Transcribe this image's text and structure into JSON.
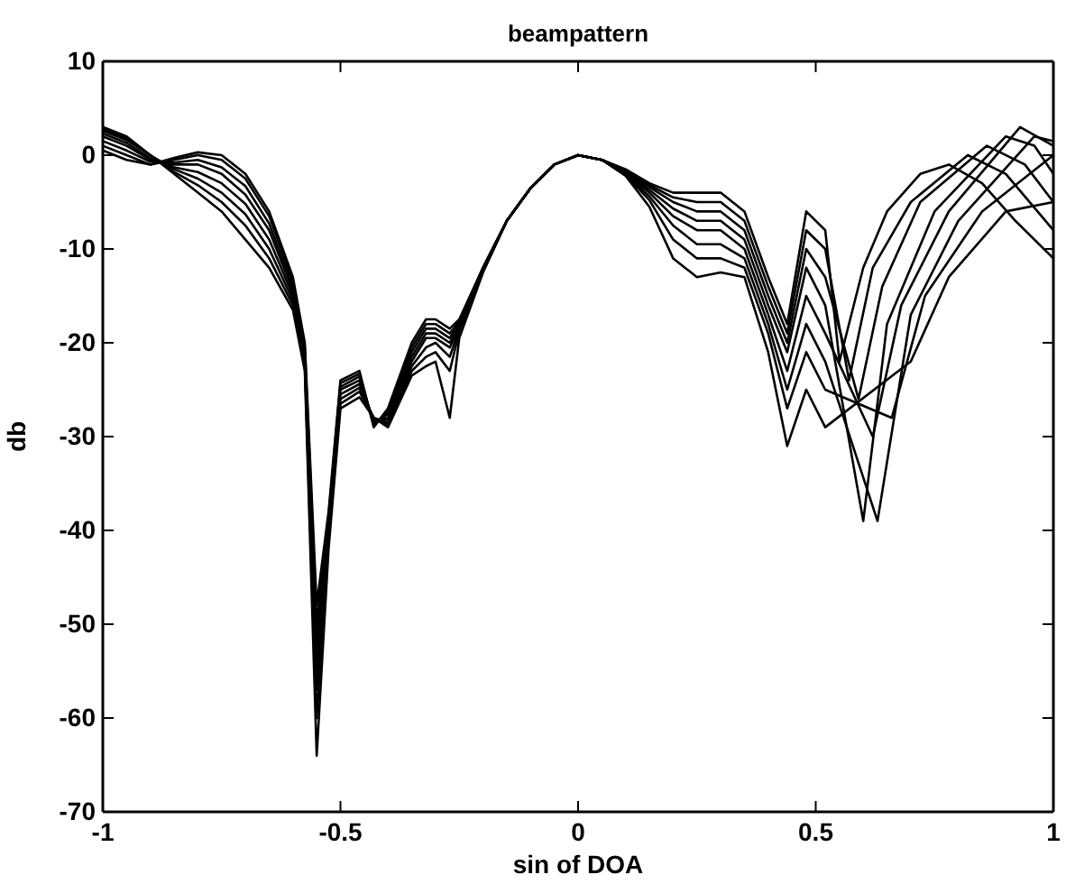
{
  "chart_data": {
    "type": "line",
    "title": "beampattern",
    "xlabel": "sin of DOA",
    "ylabel": "db",
    "xlim": [
      -1,
      1
    ],
    "ylim": [
      -70,
      10
    ],
    "xticks": [
      -1,
      -0.5,
      0,
      0.5,
      1
    ],
    "yticks": [
      -70,
      -60,
      -50,
      -40,
      -30,
      -20,
      -10,
      0,
      10
    ],
    "grid": false,
    "marker": "none",
    "line_style": "solid",
    "series": [
      {
        "color": "#000000",
        "x": [
          -1,
          -0.95,
          -0.9,
          -0.85,
          -0.8,
          -0.75,
          -0.7,
          -0.65,
          -0.6,
          -0.575,
          -0.55,
          -0.525,
          -0.5,
          -0.46,
          -0.43,
          -0.4,
          -0.35,
          -0.32,
          -0.3,
          -0.27,
          -0.25,
          -0.2,
          -0.15,
          -0.1,
          -0.05,
          0,
          0.05,
          0.1,
          0.15,
          0.2,
          0.25,
          0.3,
          0.35,
          0.4,
          0.44,
          0.48,
          0.52,
          0.55,
          0.6,
          0.65,
          0.72,
          0.78,
          0.85,
          0.92,
          1
        ],
        "values": [
          0.5,
          -0.5,
          -1,
          -0.3,
          0.3,
          0,
          -2,
          -6,
          -13,
          -20,
          -48,
          -38,
          -24,
          -23,
          -29,
          -27,
          -20,
          -17.5,
          -17.5,
          -18.5,
          -17.5,
          -12,
          -7,
          -3.5,
          -1,
          0,
          -0.5,
          -1.5,
          -3,
          -4,
          -4,
          -4,
          -6,
          -13,
          -18,
          -6,
          -8,
          -22,
          -12,
          -6,
          -2,
          -1,
          -3,
          -7,
          -11
        ]
      },
      {
        "color": "#000000",
        "x": [
          -1,
          -0.95,
          -0.9,
          -0.85,
          -0.8,
          -0.75,
          -0.7,
          -0.65,
          -0.6,
          -0.575,
          -0.55,
          -0.525,
          -0.5,
          -0.46,
          -0.43,
          -0.4,
          -0.35,
          -0.32,
          -0.3,
          -0.27,
          -0.25,
          -0.2,
          -0.15,
          -0.1,
          -0.05,
          0,
          0.05,
          0.1,
          0.15,
          0.2,
          0.25,
          0.3,
          0.35,
          0.4,
          0.44,
          0.48,
          0.52,
          0.57,
          0.62,
          0.7,
          0.82,
          0.9,
          1
        ],
        "values": [
          1,
          0,
          -1,
          -0.5,
          0,
          -0.5,
          -2.5,
          -6.5,
          -13.5,
          -20.5,
          -50,
          -38.5,
          -24.3,
          -23.3,
          -28.8,
          -27.3,
          -20.5,
          -18,
          -18,
          -19,
          -17.7,
          -12,
          -7,
          -3.5,
          -1,
          0,
          -0.5,
          -1.6,
          -3.2,
          -4.5,
          -5,
          -5,
          -7,
          -14,
          -19,
          -8,
          -10,
          -24,
          -12,
          -5,
          0,
          -2,
          -8
        ]
      },
      {
        "color": "#000000",
        "x": [
          -1,
          -0.95,
          -0.9,
          -0.85,
          -0.8,
          -0.75,
          -0.7,
          -0.65,
          -0.6,
          -0.575,
          -0.55,
          -0.525,
          -0.5,
          -0.46,
          -0.43,
          -0.4,
          -0.35,
          -0.32,
          -0.3,
          -0.27,
          -0.25,
          -0.2,
          -0.15,
          -0.1,
          -0.05,
          0,
          0.05,
          0.1,
          0.15,
          0.2,
          0.25,
          0.3,
          0.35,
          0.4,
          0.44,
          0.48,
          0.52,
          0.59,
          0.64,
          0.72,
          0.86,
          0.94,
          1
        ],
        "values": [
          1.5,
          0.5,
          -0.7,
          -0.8,
          -0.5,
          -1.3,
          -3.3,
          -7.3,
          -14,
          -21,
          -52,
          -39,
          -24.7,
          -23.6,
          -28.6,
          -27.6,
          -21,
          -18.5,
          -18.5,
          -19.5,
          -17.9,
          -12,
          -7,
          -3.5,
          -1,
          0,
          -0.5,
          -1.7,
          -3.4,
          -5,
          -6,
          -6,
          -8,
          -15,
          -20,
          -10,
          -13,
          -26,
          -14,
          -5,
          1,
          -1,
          -5
        ]
      },
      {
        "color": "#000000",
        "x": [
          -1,
          -0.95,
          -0.9,
          -0.85,
          -0.8,
          -0.75,
          -0.7,
          -0.65,
          -0.6,
          -0.575,
          -0.55,
          -0.525,
          -0.5,
          -0.46,
          -0.43,
          -0.4,
          -0.35,
          -0.32,
          -0.3,
          -0.27,
          -0.25,
          -0.2,
          -0.15,
          -0.1,
          -0.05,
          0,
          0.05,
          0.1,
          0.15,
          0.2,
          0.25,
          0.3,
          0.35,
          0.4,
          0.44,
          0.48,
          0.52,
          0.6,
          0.65,
          0.75,
          0.9,
          0.96,
          1
        ],
        "values": [
          2,
          1,
          -0.5,
          -1,
          -1,
          -2,
          -4.2,
          -8,
          -14.5,
          -21.5,
          -54,
          -39.5,
          -25,
          -24,
          -28.4,
          -28,
          -21.5,
          -19,
          -19,
          -20,
          -18.1,
          -12,
          -7,
          -3.5,
          -1,
          0,
          -0.5,
          -1.8,
          -3.7,
          -5.7,
          -7,
          -7,
          -9,
          -16,
          -21,
          -12,
          -16,
          -39,
          -18,
          -6,
          2,
          1,
          -2
        ]
      },
      {
        "color": "#000000",
        "x": [
          -1,
          -0.95,
          -0.9,
          -0.85,
          -0.8,
          -0.75,
          -0.7,
          -0.65,
          -0.6,
          -0.575,
          -0.55,
          -0.525,
          -0.5,
          -0.46,
          -0.43,
          -0.4,
          -0.35,
          -0.32,
          -0.3,
          -0.27,
          -0.25,
          -0.2,
          -0.15,
          -0.1,
          -0.05,
          0,
          0.05,
          0.1,
          0.15,
          0.2,
          0.25,
          0.3,
          0.35,
          0.4,
          0.44,
          0.48,
          0.52,
          0.62,
          0.68,
          0.78,
          0.93,
          1
        ],
        "values": [
          2.3,
          1.3,
          -0.3,
          -1.3,
          -1.8,
          -3,
          -5.2,
          -9,
          -15,
          -22,
          -55,
          -40,
          -25.5,
          -24.4,
          -28.2,
          -28.2,
          -22,
          -19.5,
          -19.5,
          -20.5,
          -18.3,
          -12.2,
          -7,
          -3.5,
          -1,
          0,
          -0.5,
          -1.9,
          -4,
          -6.5,
          -8,
          -8,
          -10,
          -17,
          -23,
          -15,
          -19,
          -30,
          -16,
          -6,
          3,
          1
        ]
      },
      {
        "color": "#000000",
        "x": [
          -1,
          -0.95,
          -0.9,
          -0.85,
          -0.8,
          -0.75,
          -0.7,
          -0.65,
          -0.6,
          -0.575,
          -0.55,
          -0.525,
          -0.5,
          -0.46,
          -0.43,
          -0.4,
          -0.35,
          -0.32,
          -0.3,
          -0.27,
          -0.25,
          -0.2,
          -0.15,
          -0.1,
          -0.05,
          0,
          0.05,
          0.1,
          0.15,
          0.2,
          0.25,
          0.3,
          0.35,
          0.4,
          0.44,
          0.48,
          0.52,
          0.63,
          0.7,
          0.8,
          0.96,
          1
        ],
        "values": [
          2.6,
          1.6,
          0,
          -1.5,
          -2.5,
          -4,
          -6.3,
          -10,
          -15.5,
          -22,
          -57,
          -40.5,
          -26,
          -24.8,
          -28,
          -28.5,
          -22.5,
          -20.5,
          -20,
          -21.5,
          -18.5,
          -12.3,
          -7,
          -3.5,
          -1,
          0,
          -0.5,
          -2,
          -4.4,
          -7.5,
          -9.5,
          -9.5,
          -11,
          -18,
          -25,
          -18,
          -22,
          -39,
          -17,
          -7,
          2,
          1.5
        ]
      },
      {
        "color": "#000000",
        "x": [
          -1,
          -0.95,
          -0.9,
          -0.85,
          -0.8,
          -0.75,
          -0.7,
          -0.65,
          -0.6,
          -0.575,
          -0.55,
          -0.525,
          -0.5,
          -0.46,
          -0.43,
          -0.4,
          -0.35,
          -0.32,
          -0.3,
          -0.27,
          -0.25,
          -0.2,
          -0.15,
          -0.1,
          -0.05,
          0,
          0.05,
          0.1,
          0.15,
          0.2,
          0.25,
          0.3,
          0.35,
          0.4,
          0.44,
          0.48,
          0.52,
          0.66,
          0.73,
          0.85,
          1
        ],
        "values": [
          2.8,
          1.8,
          0,
          -1.8,
          -3.2,
          -5,
          -7.5,
          -11,
          -16,
          -22.5,
          -60,
          -41,
          -26.5,
          -25.2,
          -28,
          -28.7,
          -23,
          -21.5,
          -21,
          -23,
          -18.8,
          -12.4,
          -7,
          -3.5,
          -1,
          0,
          -0.5,
          -2.1,
          -4.8,
          -9,
          -11,
          -11,
          -12,
          -19,
          -27,
          -21,
          -25,
          -28,
          -15,
          -6,
          0
        ]
      },
      {
        "color": "#000000",
        "x": [
          -1,
          -0.95,
          -0.9,
          -0.85,
          -0.8,
          -0.75,
          -0.7,
          -0.65,
          -0.6,
          -0.575,
          -0.55,
          -0.525,
          -0.5,
          -0.46,
          -0.43,
          -0.4,
          -0.35,
          -0.32,
          -0.3,
          -0.27,
          -0.25,
          -0.2,
          -0.15,
          -0.1,
          -0.05,
          0,
          0.05,
          0.1,
          0.15,
          0.2,
          0.25,
          0.3,
          0.35,
          0.4,
          0.44,
          0.48,
          0.52,
          0.7,
          0.78,
          0.9,
          1
        ],
        "values": [
          3,
          2,
          0,
          -2,
          -4,
          -6,
          -9,
          -12,
          -16.5,
          -23,
          -64,
          -42,
          -27,
          -25.8,
          -28,
          -29,
          -23.5,
          -22.5,
          -22,
          -28,
          -19.5,
          -12.5,
          -7,
          -3.5,
          -1,
          0,
          -0.5,
          -2.2,
          -5.5,
          -11,
          -13,
          -12.5,
          -13,
          -21,
          -31,
          -25,
          -29,
          -22,
          -13,
          -6,
          -5
        ]
      }
    ]
  }
}
